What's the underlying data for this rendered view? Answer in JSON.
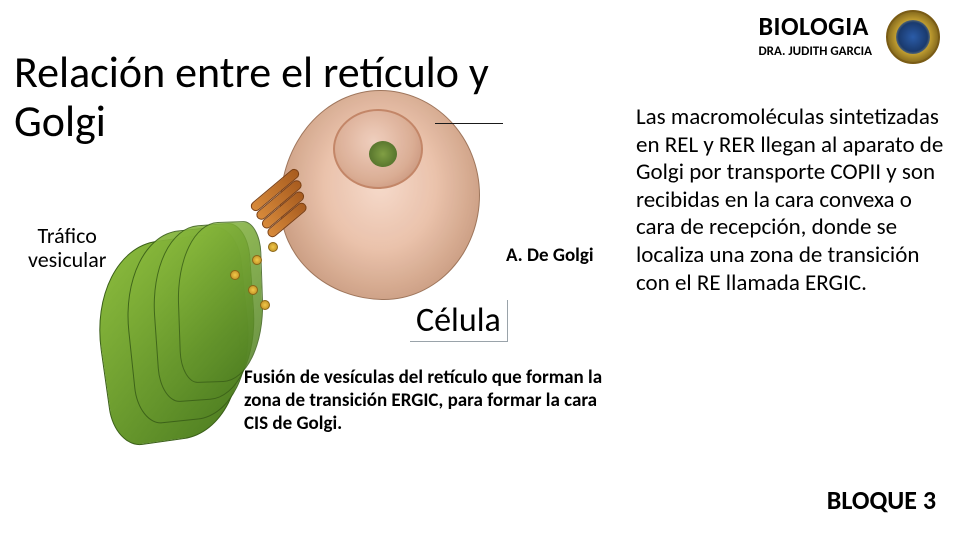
{
  "header": {
    "course_title": "BIOLOGIA",
    "instructor": "DRA. JUDITH GARCIA",
    "seal_colors": {
      "gold": "#d4af37",
      "navy": "#1a3a6e"
    }
  },
  "main_title": "Relación entre el retículo y Golgi",
  "labels": {
    "trafico": "Tráfico vesicular",
    "golgi": "A. De Golgi",
    "celula": "Célula"
  },
  "fusion_caption": "Fusión de vesículas del retículo que forman la zona de transición ERGIC, para formar la cara CIS de Golgi.",
  "body_text": "Las macromoléculas sintetizadas en REL y RER llegan al aparato de Golgi por transporte COPII y son recibidas en la cara convexa o cara de recepción, donde se localiza  una zona de transición con el RE llamada ERGIC.",
  "footer": {
    "bloque": "BLOQUE 3"
  },
  "diagram": {
    "type": "infographic",
    "background_color": "#ffffff",
    "cell": {
      "fill_gradient": [
        "#f6d8c8",
        "#e9bfa7",
        "#c99a7d",
        "#a07258"
      ],
      "border": "#9a6f54"
    },
    "nucleus": {
      "fill_gradient": [
        "#efcdbb",
        "#d9a98f",
        "#b77f63"
      ],
      "border": "#c08060",
      "nucleolus_fill": [
        "#7a9a3a",
        "#3f5e1a"
      ]
    },
    "endoplasmic_reticulum": {
      "sheet_count": 4,
      "fill_gradient": [
        "#8fbf3f",
        "#4a7a1f"
      ],
      "border": "#3a5f18"
    },
    "golgi": {
      "cisternae_count": 4,
      "fill_gradient": [
        "#d88a3a",
        "#a85c1f"
      ],
      "border": "#7a3f14",
      "rotation_deg": -40
    },
    "vesicles": {
      "count": 5,
      "fill_gradient": [
        "#f2c84a",
        "#b88a1f"
      ],
      "border": "#8a6516"
    },
    "leader_line_color": "#1a1a1a"
  },
  "typography": {
    "title_fontsize": 44,
    "body_fontsize": 23,
    "label_small_fontsize": 22,
    "label_bold_fontsize": 19,
    "celula_fontsize": 34,
    "caption_fontsize": 19,
    "header_course_fontsize": 26,
    "header_instructor_fontsize": 13,
    "bloque_fontsize": 26,
    "font_family": "Calibri"
  },
  "colors": {
    "text": "#000000",
    "background": "#ffffff",
    "celula_border": "#9aa3aa"
  }
}
